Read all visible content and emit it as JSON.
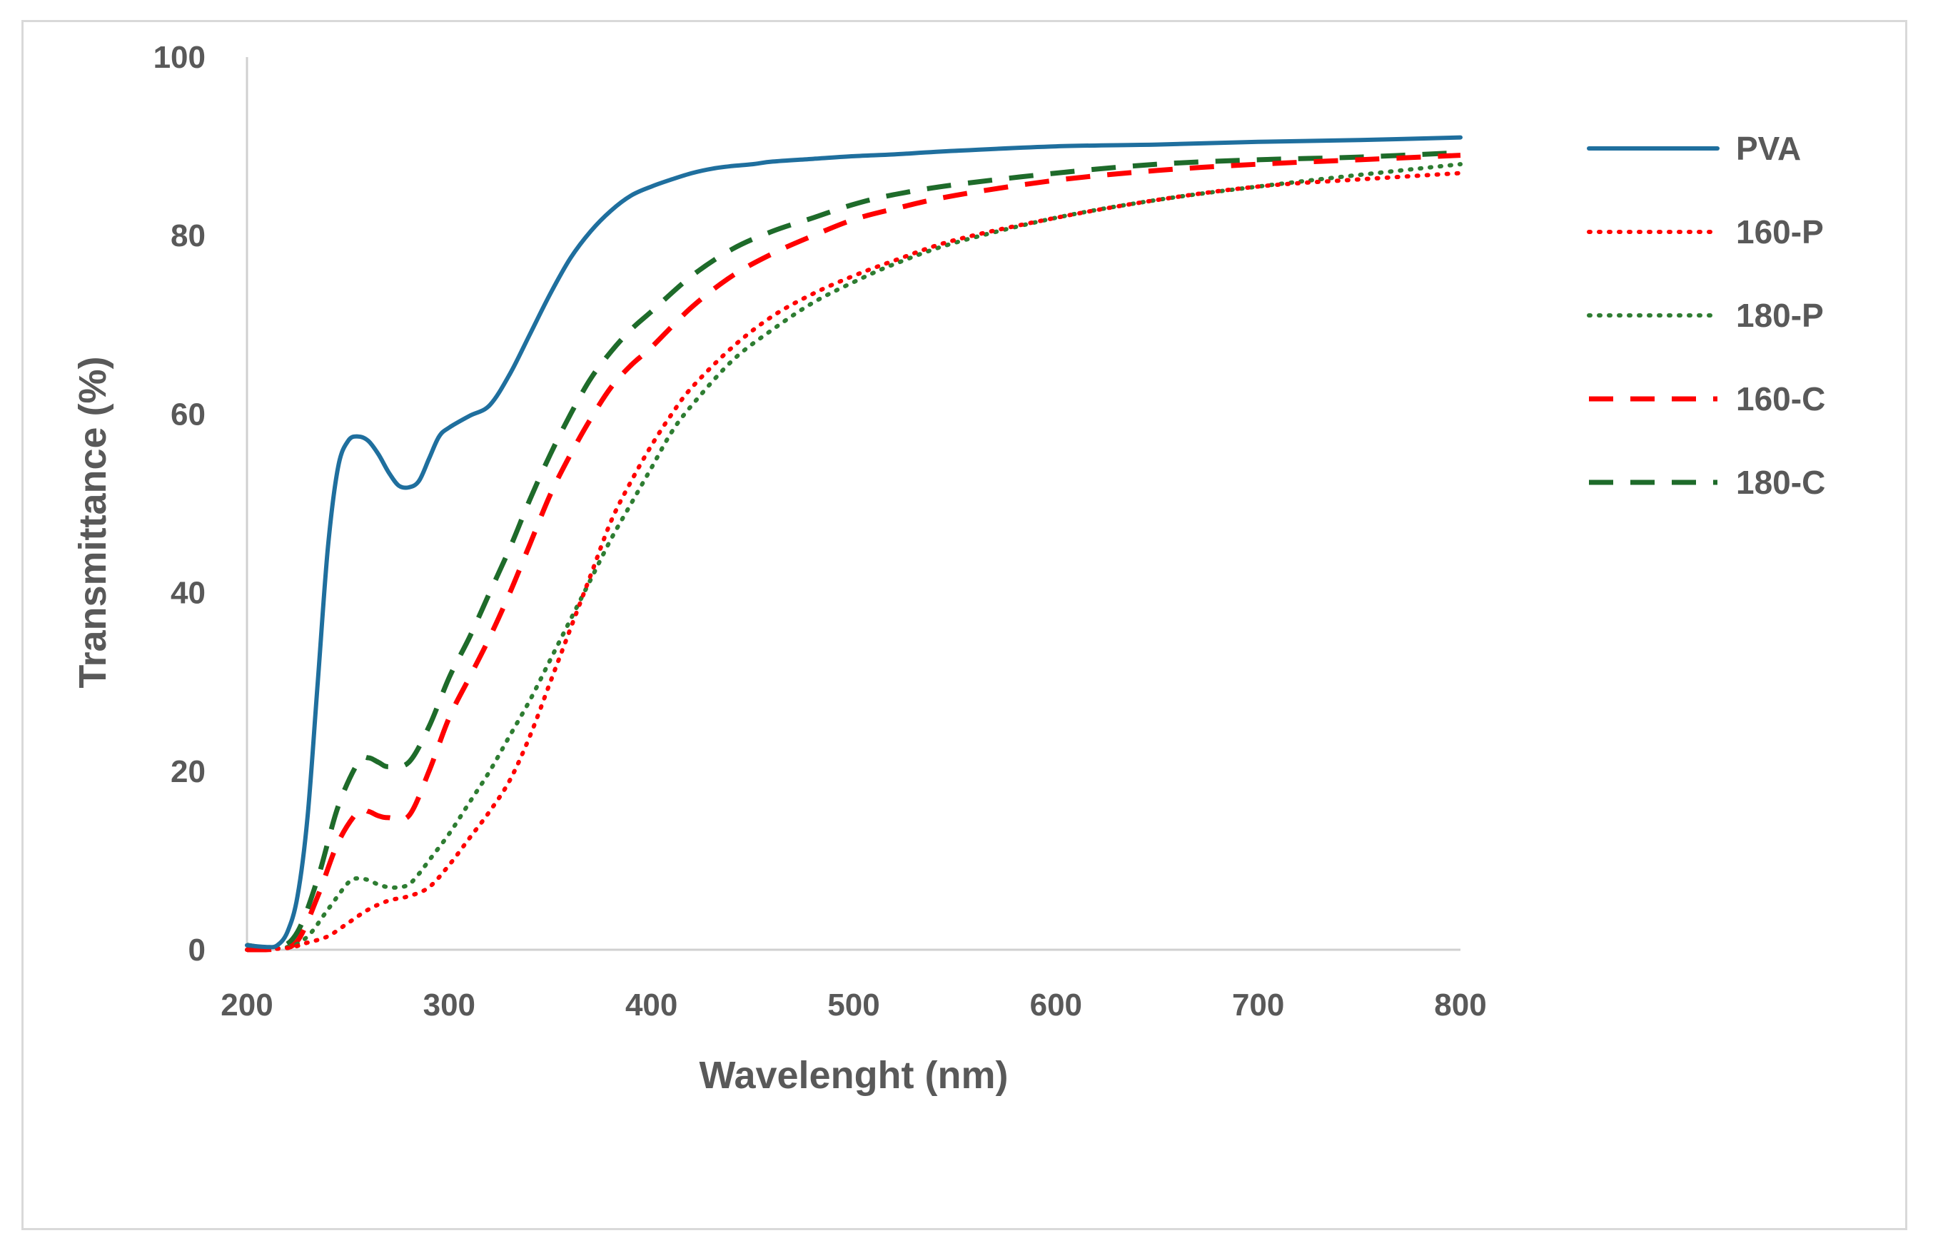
{
  "chart_data": {
    "type": "line",
    "title": "",
    "xlabel": "Wavelenght (nm)",
    "ylabel": "Transmittance (%)",
    "xlim": [
      200,
      800
    ],
    "ylim": [
      0,
      100
    ],
    "xticks": [
      "200",
      "300",
      "400",
      "500",
      "600",
      "700",
      "800"
    ],
    "yticks": [
      "0",
      "20",
      "40",
      "60",
      "80",
      "100"
    ],
    "grid": false,
    "legend_position": "right",
    "series": [
      {
        "name": "PVA",
        "color": "#1f6f9e",
        "style": "solid",
        "x": [
          200,
          210,
          215,
          220,
          225,
          230,
          235,
          240,
          245,
          250,
          255,
          260,
          265,
          270,
          275,
          280,
          285,
          290,
          295,
          300,
          310,
          320,
          330,
          340,
          350,
          360,
          370,
          380,
          390,
          400,
          410,
          420,
          430,
          440,
          450,
          460,
          480,
          500,
          520,
          550,
          600,
          650,
          700,
          750,
          800
        ],
        "y": [
          0.5,
          0.3,
          0.5,
          2,
          6,
          15,
          30,
          45,
          54,
          57,
          57.5,
          57,
          55.5,
          53.5,
          52,
          51.8,
          52.5,
          55,
          57.5,
          58.5,
          59.8,
          61,
          64.5,
          69,
          73.5,
          77.5,
          80.5,
          82.8,
          84.5,
          85.5,
          86.3,
          87,
          87.5,
          87.8,
          88,
          88.3,
          88.6,
          88.9,
          89.1,
          89.5,
          90,
          90.2,
          90.5,
          90.7,
          91
        ]
      },
      {
        "name": "160-P",
        "color": "#ff0000",
        "style": "dotted",
        "x": [
          200,
          220,
          230,
          240,
          250,
          260,
          270,
          280,
          290,
          300,
          310,
          320,
          330,
          340,
          350,
          360,
          370,
          380,
          390,
          400,
          410,
          420,
          440,
          460,
          480,
          500,
          520,
          550,
          600,
          650,
          700,
          750,
          800
        ],
        "y": [
          0,
          0.2,
          0.8,
          1.5,
          3,
          4.5,
          5.5,
          6,
          7,
          9.5,
          12.5,
          15.5,
          19,
          24,
          30,
          36,
          42,
          48,
          52.5,
          56.5,
          60,
          63,
          67.5,
          71,
          73.5,
          75.5,
          77.2,
          79.5,
          82,
          84,
          85.5,
          86.3,
          87
        ]
      },
      {
        "name": "180-P",
        "color": "#2e7d32",
        "style": "dotted",
        "x": [
          200,
          220,
          230,
          240,
          250,
          255,
          260,
          265,
          270,
          275,
          280,
          285,
          290,
          300,
          310,
          320,
          330,
          340,
          350,
          360,
          370,
          380,
          390,
          400,
          410,
          420,
          440,
          460,
          480,
          500,
          520,
          550,
          600,
          650,
          700,
          750,
          800
        ],
        "y": [
          0,
          0.3,
          1.5,
          4.5,
          7.5,
          8,
          7.8,
          7.3,
          7,
          7,
          7.3,
          8.5,
          10,
          13,
          16.5,
          20,
          24,
          28,
          32.5,
          37,
          41.5,
          46,
          50,
          54,
          58,
          61,
          66,
          69.5,
          72.5,
          74.8,
          76.8,
          79.2,
          82,
          84,
          85.5,
          86.8,
          88
        ]
      },
      {
        "name": "160-C",
        "color": "#ff0000",
        "style": "dashed",
        "x": [
          200,
          215,
          225,
          235,
          245,
          255,
          260,
          265,
          270,
          280,
          290,
          300,
          310,
          320,
          330,
          340,
          350,
          360,
          370,
          380,
          390,
          400,
          420,
          440,
          460,
          480,
          500,
          520,
          550,
          600,
          650,
          700,
          750,
          800
        ],
        "y": [
          0,
          0.1,
          1,
          6,
          12,
          15.5,
          15.5,
          15,
          14.8,
          15,
          20,
          26,
          30.5,
          35,
          40,
          45.5,
          51,
          55.5,
          59.5,
          63,
          65.5,
          67.5,
          72,
          75.5,
          78,
          80,
          81.8,
          83,
          84.5,
          86.2,
          87.3,
          88,
          88.5,
          89
        ]
      },
      {
        "name": "180-C",
        "color": "#1e6b2a",
        "style": "dashed",
        "x": [
          200,
          215,
          225,
          235,
          245,
          255,
          260,
          265,
          270,
          280,
          290,
          300,
          310,
          320,
          330,
          340,
          350,
          360,
          370,
          380,
          390,
          400,
          420,
          440,
          460,
          480,
          500,
          520,
          550,
          600,
          650,
          700,
          750,
          800
        ],
        "y": [
          0.5,
          0.2,
          2,
          8,
          16,
          21,
          21.5,
          21,
          20.5,
          21,
          25,
          30.5,
          35,
          40,
          45,
          50.5,
          55.5,
          60,
          64,
          67,
          69.5,
          71.5,
          75.5,
          78.5,
          80.5,
          82,
          83.5,
          84.6,
          85.7,
          87,
          88,
          88.5,
          88.8,
          89.3
        ]
      }
    ]
  }
}
